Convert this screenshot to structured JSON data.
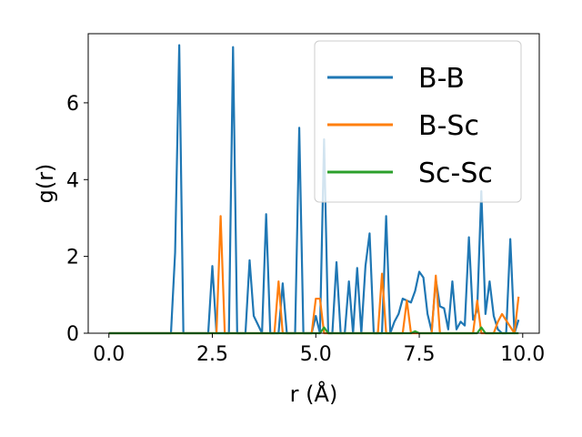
{
  "chart_data": {
    "type": "line",
    "title": "",
    "xlabel": "r (Å)",
    "ylabel": "g(r)",
    "xlim": [
      -0.5,
      10.4
    ],
    "ylim": [
      0,
      7.8
    ],
    "xticks": [
      0.0,
      2.5,
      5.0,
      7.5,
      10.0
    ],
    "xtick_labels": [
      "0.0",
      "2.5",
      "5.0",
      "7.5",
      "10.0"
    ],
    "yticks": [
      0,
      2,
      4,
      6
    ],
    "ytick_labels": [
      "0",
      "2",
      "4",
      "6"
    ],
    "grid": false,
    "legend": "top-right",
    "series": [
      {
        "name": "B-B",
        "color": "#1f77b4",
        "x": [
          0.0,
          1.5,
          1.6,
          1.7,
          1.8,
          1.9,
          2.4,
          2.5,
          2.6,
          2.9,
          3.0,
          3.1,
          3.3,
          3.4,
          3.5,
          3.7,
          3.8,
          3.9,
          4.1,
          4.2,
          4.3,
          4.5,
          4.6,
          4.7,
          4.9,
          5.0,
          5.1,
          5.2,
          5.3,
          5.4,
          5.5,
          5.6,
          5.7,
          5.8,
          5.9,
          6.0,
          6.1,
          6.2,
          6.3,
          6.4,
          6.5,
          6.6,
          6.7,
          6.8,
          6.9,
          7.0,
          7.1,
          7.2,
          7.3,
          7.4,
          7.5,
          7.6,
          7.7,
          7.8,
          7.9,
          8.0,
          8.1,
          8.2,
          8.3,
          8.4,
          8.5,
          8.6,
          8.7,
          8.8,
          8.9,
          9.0,
          9.1,
          9.2,
          9.3,
          9.4,
          9.5,
          9.6,
          9.7,
          9.8,
          9.9
        ],
        "values": [
          0,
          0,
          2.1,
          7.5,
          0,
          0,
          0,
          1.75,
          0,
          0,
          7.45,
          0,
          0,
          1.9,
          0.45,
          0,
          3.1,
          0,
          0,
          1.3,
          0,
          0,
          5.35,
          0,
          0,
          0.45,
          0,
          5.05,
          0,
          0,
          1.85,
          0,
          0,
          1.35,
          0,
          1.7,
          0,
          1.75,
          2.6,
          0,
          0,
          0,
          3.05,
          0,
          0.3,
          0.5,
          0.9,
          0.85,
          0.8,
          1.1,
          1.6,
          1.45,
          0.5,
          0.05,
          1.4,
          0.7,
          0.65,
          0.1,
          1.35,
          0.1,
          0.3,
          0.2,
          2.5,
          0.35,
          0.6,
          3.7,
          0.5,
          1.35,
          0.45,
          0.1,
          0,
          0,
          2.45,
          0,
          0.35
        ]
      },
      {
        "name": "B-Sc",
        "color": "#ff7f0e",
        "x": [
          0.0,
          2.6,
          2.7,
          2.8,
          4.0,
          4.1,
          4.2,
          4.9,
          5.0,
          5.1,
          5.2,
          6.5,
          6.6,
          6.7,
          7.1,
          7.2,
          7.3,
          7.8,
          7.9,
          8.0,
          8.8,
          8.9,
          9.0,
          9.3,
          9.4,
          9.5,
          9.8,
          9.9
        ],
        "values": [
          0,
          0,
          3.05,
          0,
          0,
          1.35,
          0,
          0,
          0.9,
          0.9,
          0,
          0,
          1.55,
          0,
          0,
          0.85,
          0,
          0,
          1.5,
          0,
          0,
          0.85,
          0,
          0,
          0.3,
          0.5,
          0,
          0.95
        ]
      },
      {
        "name": "Sc-Sc",
        "color": "#2ca02c",
        "x": [
          0.0,
          5.1,
          5.2,
          5.3,
          7.3,
          7.4,
          7.5,
          8.9,
          9.0,
          9.1,
          9.9
        ],
        "values": [
          0,
          0,
          0.15,
          0,
          0,
          0.05,
          0,
          0,
          0.15,
          0,
          0
        ]
      }
    ]
  }
}
